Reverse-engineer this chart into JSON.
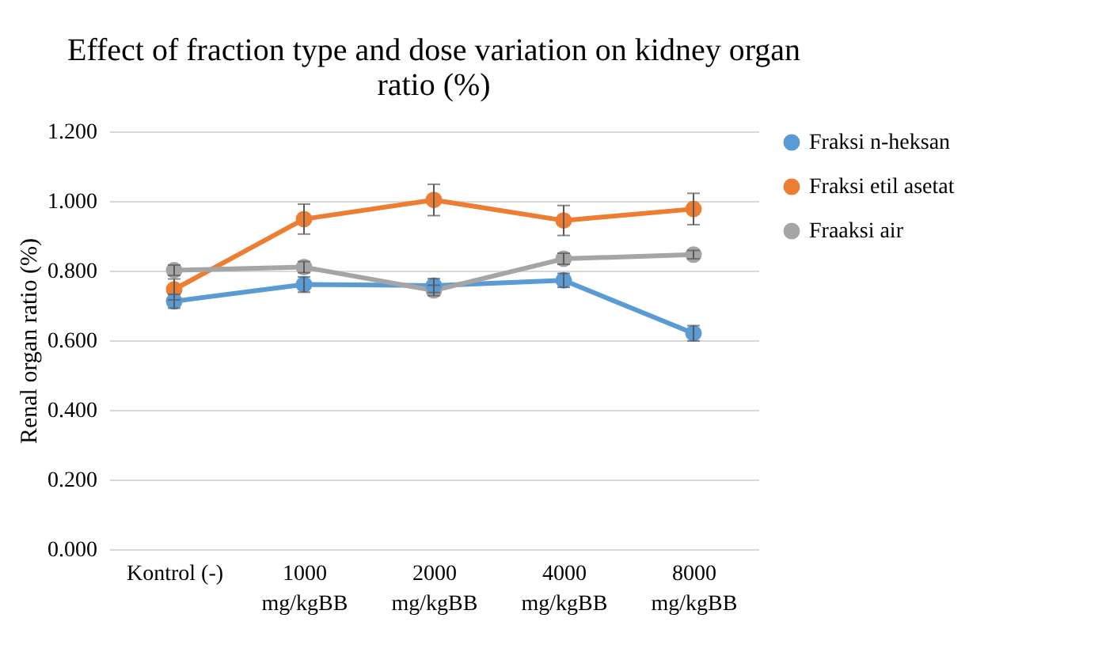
{
  "chart_data": {
    "type": "line",
    "title": "Effect of fraction type and dose variation on kidney organ ratio (%)",
    "ylabel": "Renal organ ratio (%)",
    "categories": [
      "Kontrol (-)",
      "1000\nmg/kgBB",
      "2000\nmg/kgBB",
      "4000\nmg/kgBB",
      "8000\nmg/kgBB"
    ],
    "series": [
      {
        "name": "Fraksi n-heksan",
        "color": "#5b9bd5",
        "values": [
          0.712,
          0.76,
          0.757,
          0.772,
          0.62
        ],
        "errors": [
          0.02,
          0.022,
          0.02,
          0.02,
          0.022
        ]
      },
      {
        "name": "Fraksi etil asetat",
        "color": "#ed7d31",
        "values": [
          0.746,
          0.948,
          1.003,
          0.944,
          0.977
        ],
        "errors": [
          0.03,
          0.043,
          0.045,
          0.043,
          0.045
        ]
      },
      {
        "name": "Fraaksi air",
        "color": "#a5a5a5",
        "values": [
          0.801,
          0.81,
          0.743,
          0.834,
          0.846
        ],
        "errors": [
          0.015,
          0.016,
          0.015,
          0.016,
          0.012
        ]
      }
    ],
    "ylim": [
      0,
      1.2
    ],
    "yticks": [
      {
        "value": 0,
        "label": "0.000"
      },
      {
        "value": 0.2,
        "label": "0.200"
      },
      {
        "value": 0.4,
        "label": "0.400"
      },
      {
        "value": 0.6,
        "label": "0.600"
      },
      {
        "value": 0.8,
        "label": "0.800"
      },
      {
        "value": 1.0,
        "label": "1.000"
      },
      {
        "value": 1.2,
        "label": "1.200"
      }
    ],
    "grid": "y",
    "legend": "right",
    "marker": "circle",
    "line_style": "solid"
  }
}
